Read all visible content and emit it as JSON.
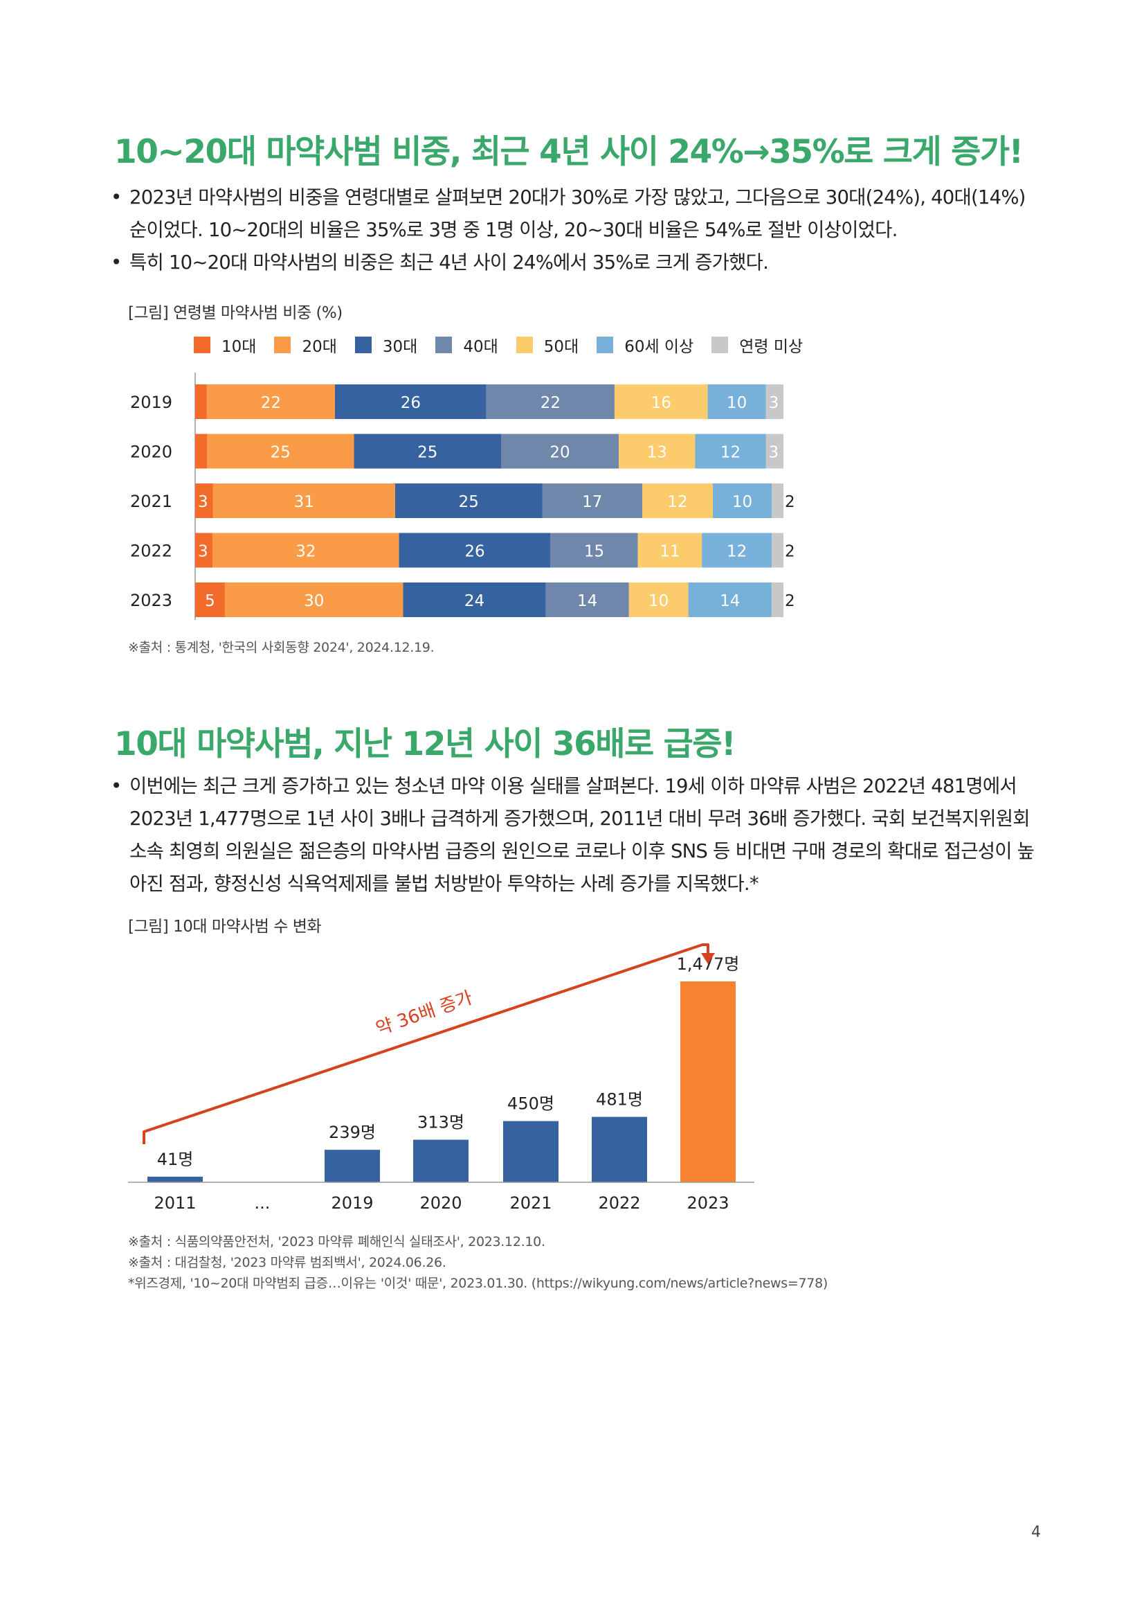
{
  "section1": {
    "title": "10~20대 마약사범 비중, 최근 4년 사이 24%→35%로 크게 증가!",
    "bullets": [
      "2023년 마약사범의 비중을 연령대별로 살펴보면 20대가 30%로 가장 많았고, 그다음으로 30대(24%), 40대(14%) 순이었다. 10~20대의 비율은 35%로 3명 중 1명 이상, 20~30대 비율은 54%로 절반 이상이었다.",
      "특히 10~20대 마약사범의 비중은 최근 4년 사이 24%에서 35%로 크게 증가했다."
    ],
    "caption": "[그림] 연령별 마약사범 비중 (%)",
    "source": "※출처 : 통계청, '한국의 사회동향 2024', 2024.12.19."
  },
  "section2": {
    "title": "10대 마약사범, 지난 12년 사이 36배로 급증!",
    "bullets": [
      "이번에는 최근 크게 증가하고 있는 청소년 마약 이용 실태를 살펴본다. 19세 이하 마약류 사범은 2022년 481명에서 2023년 1,477명으로 1년 사이 3배나 급격하게 증가했으며, 2011년 대비 무려 36배 증가했다. 국회 보건복지위원회 소속 최영희 의원실은 젊은층의 마약사범 급증의 원인으로 코로나 이후 SNS 등 비대면 구매 경로의 확대로 접근성이 높아진 점과, 향정신성 식욕억제제를 불법 처방받아 투약하는 사례 증가를 지목했다.*"
    ],
    "caption": "[그림] 10대 마약사범 수 변화",
    "sources": [
      "※출처 : 식품의약품안전처, '2023 마약류 폐해인식 실태조사', 2023.12.10.",
      "※출처 : 대검찰청, '2023 마약류 범죄백서', 2024.06.26.",
      "*위즈경제, '10~20대 마약범죄 급증…이유는 '이것' 때문', 2023.01.30. (https://wikyung.com/news/article?news=778)"
    ]
  },
  "page_number": "4",
  "chart_data": [
    {
      "type": "bar",
      "orientation": "horizontal",
      "stacked": true,
      "title": "[그림] 연령별 마약사범 비중 (%)",
      "legend_position": "top",
      "categories": [
        "2019",
        "2020",
        "2021",
        "2022",
        "2023"
      ],
      "series": [
        {
          "name": "10대",
          "color": "#f26b2a",
          "values": [
            2,
            2,
            3,
            3,
            5
          ]
        },
        {
          "name": "20대",
          "color": "#fa9c47",
          "values": [
            22,
            25,
            31,
            32,
            30
          ]
        },
        {
          "name": "30대",
          "color": "#3762a0",
          "values": [
            26,
            25,
            25,
            26,
            24
          ]
        },
        {
          "name": "40대",
          "color": "#7087ac",
          "values": [
            22,
            20,
            17,
            15,
            14
          ]
        },
        {
          "name": "50대",
          "color": "#fbcb6c",
          "values": [
            16,
            13,
            12,
            11,
            10
          ]
        },
        {
          "name": "60세 이상",
          "color": "#77b0d9",
          "values": [
            10,
            12,
            10,
            12,
            14
          ]
        },
        {
          "name": "연령 미상",
          "color": "#c8c8c8",
          "values": [
            3,
            3,
            2,
            2,
            2
          ]
        }
      ]
    },
    {
      "type": "bar",
      "title": "[그림] 10대 마약사범 수 변화",
      "categories": [
        "2011",
        "...",
        "2019",
        "2020",
        "2021",
        "2022",
        "2023"
      ],
      "values": [
        41,
        null,
        239,
        313,
        450,
        481,
        1477
      ],
      "value_labels": [
        "41명",
        "",
        "239명",
        "313명",
        "450명",
        "481명",
        "1,477명"
      ],
      "colors": [
        "#3762a0",
        "#3762a0",
        "#3762a0",
        "#3762a0",
        "#3762a0",
        "#3762a0",
        "#f78331"
      ],
      "annotation": "약 36배 증가",
      "annotation_color": "#d7421e"
    }
  ]
}
